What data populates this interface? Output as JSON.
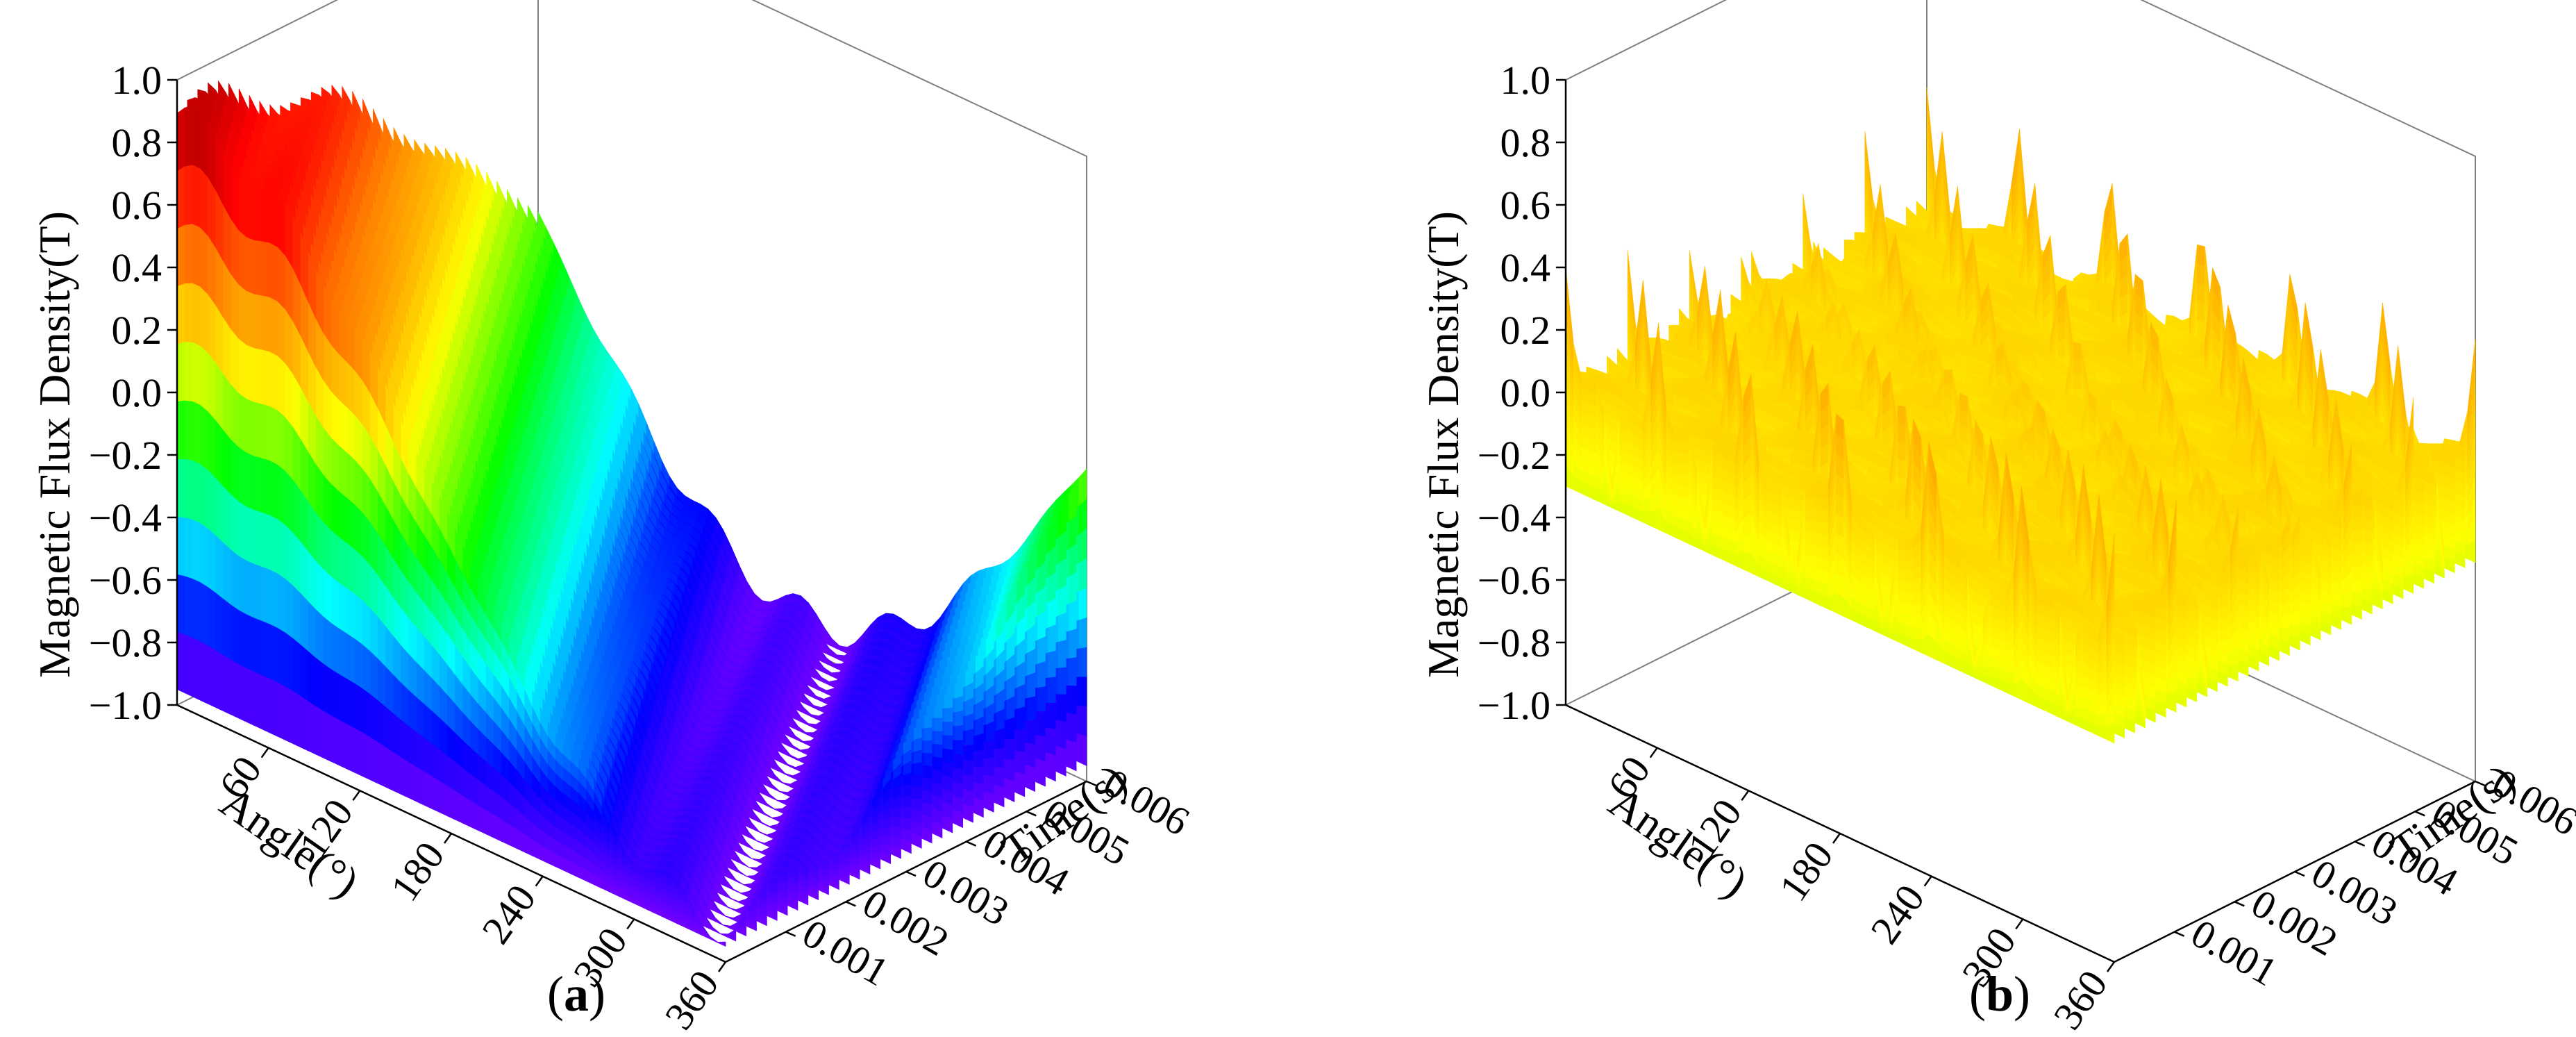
{
  "figure": {
    "panel_a_label": "a",
    "panel_b_label": "b"
  },
  "chart_data": [
    {
      "type": "surface3d",
      "panel": "a",
      "title": "",
      "zlabel": "Magnetic Flux Density(T)",
      "xlabel": "Angle(°)",
      "ylabel": "Time(s)",
      "zlim": [
        -1.0,
        1.0
      ],
      "z_ticks": [
        "-1.0",
        "-0.8",
        "-0.6",
        "-0.4",
        "-0.2",
        "0.0",
        "0.2",
        "0.4",
        "0.6",
        "0.8",
        "1.0"
      ],
      "x_ticks": [
        "60",
        "120",
        "180",
        "240",
        "300",
        "360"
      ],
      "y_ticks": [
        "0.001",
        "0.002",
        "0.003",
        "0.004",
        "0.005",
        "0.006"
      ],
      "xlim": [
        0,
        360
      ],
      "ylim": [
        0,
        0.006
      ],
      "colormap": [
        "#8b00ff",
        "#0000ff",
        "#00ffff",
        "#00ff00",
        "#ffff00",
        "#ff7f00",
        "#ff0000",
        "#800000"
      ],
      "description_values": {
        "peak": 0.95,
        "trough": -0.95,
        "waveform": "sinusoidal in angle and time"
      }
    },
    {
      "type": "surface3d",
      "panel": "b",
      "title": "",
      "zlabel": "Magnetic Flux Density(T)",
      "xlabel": "Angle(°)",
      "ylabel": "Time(s)",
      "zlim": [
        -1.0,
        1.0
      ],
      "z_ticks": [
        "-1.0",
        "-0.8",
        "-0.6",
        "-0.4",
        "-0.2",
        "0.0",
        "0.2",
        "0.4",
        "0.6",
        "0.8",
        "1.0"
      ],
      "x_ticks": [
        "60",
        "120",
        "180",
        "240",
        "300",
        "360"
      ],
      "y_ticks": [
        "0.001",
        "0.002",
        "0.003",
        "0.004",
        "0.005",
        "0.006"
      ],
      "xlim": [
        0,
        360
      ],
      "ylim": [
        0,
        0.006
      ],
      "colormap": [
        "#00ff00",
        "#7fff00",
        "#ffff00",
        "#ffbf00",
        "#ff7f00",
        "#ff3f00"
      ],
      "description_values": {
        "baseline": 0.05,
        "peak": 0.4,
        "trough": -0.3,
        "pattern": "periodic peaks across angle and time"
      }
    }
  ]
}
